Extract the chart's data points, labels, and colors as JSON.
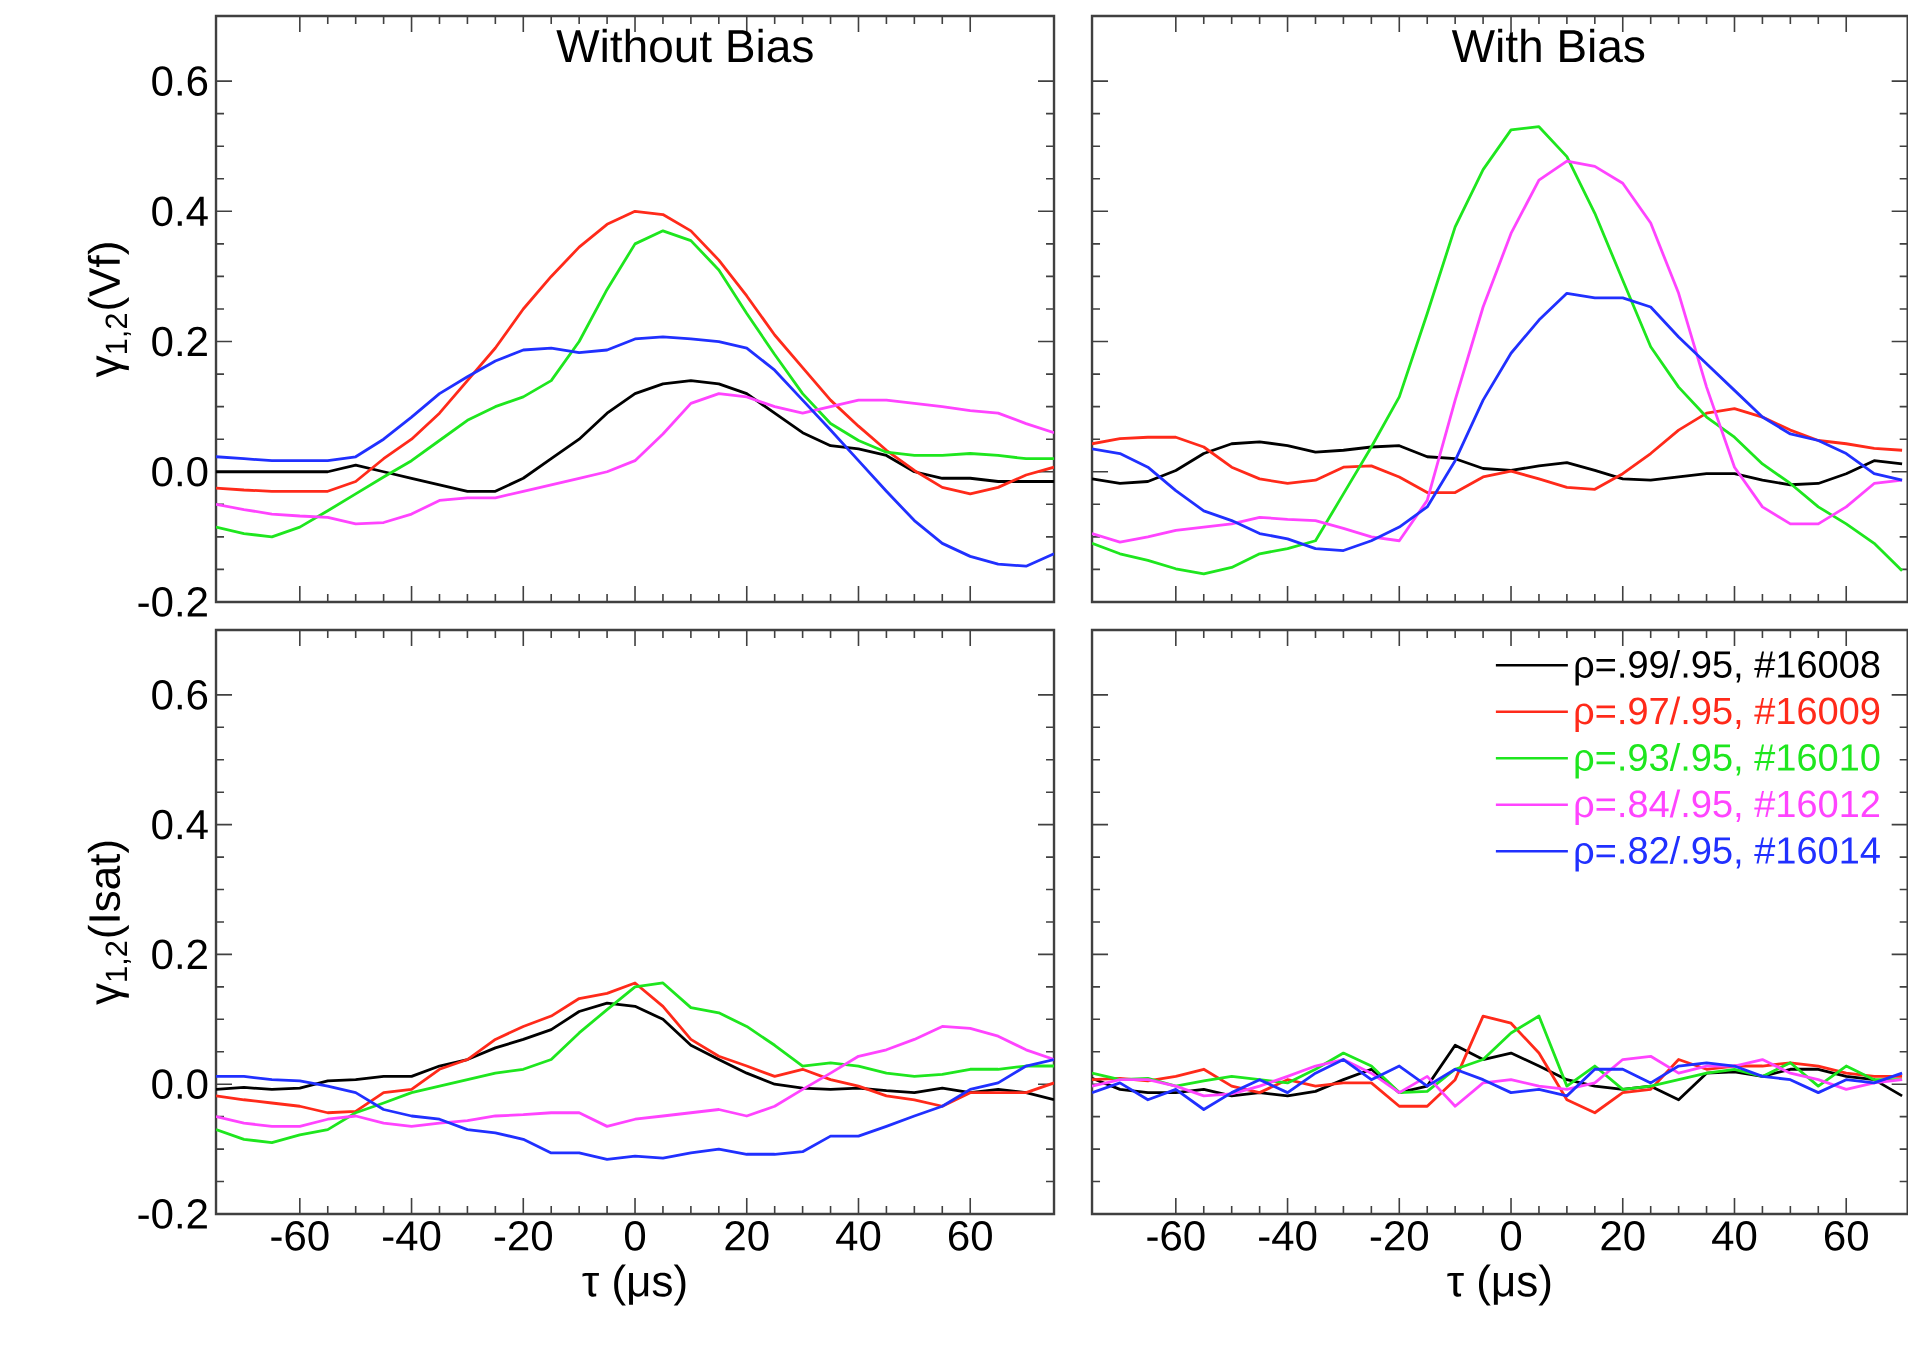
{
  "chart_data": [
    {
      "type": "line",
      "title": "Without Bias",
      "ylabel": "γ$_{1,2}$(Vf)",
      "tick_labels": "y",
      "x": [
        -75,
        -70,
        -65,
        -60,
        -55,
        -50,
        -45,
        -40,
        -35,
        -30,
        -25,
        -20,
        -15,
        -10,
        -5,
        0,
        5,
        10,
        15,
        20,
        25,
        30,
        35,
        40,
        45,
        50,
        55,
        60,
        65,
        70,
        75
      ],
      "xlim": [
        -75,
        75
      ],
      "ylim": [
        -0.2,
        0.7
      ],
      "xticks": [
        -60,
        -40,
        -20,
        0,
        20,
        40,
        60
      ],
      "yticks": [
        -0.2,
        {
          "value": 0,
          "label": "0.0"
        },
        0.2,
        0.4,
        0.6
      ],
      "series": [
        {
          "color": "#000000",
          "values": [
            0.0,
            0.0,
            0.0,
            0.0,
            0.0,
            0.01,
            0.0,
            -0.01,
            -0.02,
            -0.03,
            -0.03,
            -0.01,
            0.02,
            0.05,
            0.09,
            0.12,
            0.135,
            0.14,
            0.135,
            0.12,
            0.09,
            0.06,
            0.04,
            0.035,
            0.025,
            0.0,
            -0.01,
            -0.01,
            -0.015,
            -0.015,
            -0.015
          ]
        },
        {
          "color": "#ff2a1a",
          "values": [
            -0.025,
            -0.028,
            -0.03,
            -0.03,
            -0.03,
            -0.015,
            0.02,
            0.05,
            0.09,
            0.14,
            0.19,
            0.25,
            0.3,
            0.345,
            0.38,
            0.4,
            0.395,
            0.37,
            0.325,
            0.27,
            0.21,
            0.16,
            0.11,
            0.07,
            0.033,
            0.002,
            -0.024,
            -0.034,
            -0.024,
            -0.005,
            0.007
          ]
        },
        {
          "color": "#1ee61e",
          "values": [
            -0.085,
            -0.095,
            -0.1,
            -0.085,
            -0.06,
            -0.034,
            -0.008,
            0.017,
            0.048,
            0.079,
            0.1,
            0.115,
            0.14,
            0.2,
            0.28,
            0.35,
            0.37,
            0.355,
            0.31,
            0.243,
            0.18,
            0.12,
            0.074,
            0.048,
            0.03,
            0.025,
            0.025,
            0.028,
            0.025,
            0.02,
            0.02
          ]
        },
        {
          "color": "#ff44ff",
          "values": [
            -0.05,
            -0.058,
            -0.065,
            -0.068,
            -0.07,
            -0.08,
            -0.078,
            -0.065,
            -0.044,
            -0.04,
            -0.04,
            -0.03,
            -0.02,
            -0.01,
            0.0,
            0.017,
            0.058,
            0.105,
            0.12,
            0.115,
            0.1,
            0.09,
            0.1,
            0.11,
            0.11,
            0.105,
            0.1,
            0.094,
            0.09,
            0.074,
            0.06
          ]
        },
        {
          "color": "#2030ff",
          "values": [
            0.023,
            0.02,
            0.017,
            0.017,
            0.017,
            0.023,
            0.05,
            0.084,
            0.12,
            0.146,
            0.17,
            0.187,
            0.19,
            0.183,
            0.187,
            0.204,
            0.207,
            0.204,
            0.2,
            0.19,
            0.156,
            0.11,
            0.064,
            0.017,
            -0.03,
            -0.075,
            -0.11,
            -0.13,
            -0.142,
            -0.145,
            -0.126
          ]
        }
      ]
    },
    {
      "type": "line",
      "title": "With Bias",
      "tick_labels": false,
      "x": [
        -75,
        -70,
        -65,
        -60,
        -55,
        -50,
        -45,
        -40,
        -35,
        -30,
        -25,
        -20,
        -15,
        -10,
        -5,
        0,
        5,
        10,
        15,
        20,
        25,
        30,
        35,
        40,
        45,
        50,
        55,
        60,
        65,
        70
      ],
      "xlim": [
        -75,
        71
      ],
      "ylim": [
        -0.2,
        0.7
      ],
      "xticks": [
        -60,
        -40,
        -20,
        0,
        20,
        40,
        60
      ],
      "yticks": [
        -0.2,
        0,
        0.2,
        0.4,
        0.6
      ],
      "series": [
        {
          "color": "#000000",
          "values": [
            -0.011,
            -0.018,
            -0.015,
            0.002,
            0.028,
            0.043,
            0.046,
            0.04,
            0.03,
            0.033,
            0.038,
            0.04,
            0.023,
            0.02,
            0.005,
            0.002,
            0.009,
            0.014,
            0.002,
            -0.011,
            -0.013,
            -0.008,
            -0.003,
            -0.003,
            -0.013,
            -0.02,
            -0.018,
            -0.003,
            0.017,
            0.012
          ]
        },
        {
          "color": "#ff2a1a",
          "values": [
            0.043,
            0.051,
            0.053,
            0.053,
            0.038,
            0.007,
            -0.011,
            -0.018,
            -0.013,
            0.007,
            0.009,
            -0.008,
            -0.032,
            -0.032,
            -0.008,
            0.001,
            -0.011,
            -0.024,
            -0.027,
            -0.003,
            0.028,
            0.064,
            0.09,
            0.097,
            0.084,
            0.064,
            0.048,
            0.043,
            0.036,
            0.033
          ]
        },
        {
          "color": "#1ee61e",
          "values": [
            -0.11,
            -0.126,
            -0.136,
            -0.149,
            -0.157,
            -0.147,
            -0.126,
            -0.118,
            -0.106,
            -0.034,
            0.038,
            0.115,
            0.243,
            0.376,
            0.464,
            0.525,
            0.53,
            0.484,
            0.397,
            0.294,
            0.192,
            0.13,
            0.084,
            0.053,
            0.012,
            -0.018,
            -0.054,
            -0.08,
            -0.11,
            -0.152
          ]
        },
        {
          "color": "#ff44ff",
          "values": [
            -0.095,
            -0.108,
            -0.1,
            -0.09,
            -0.085,
            -0.08,
            -0.07,
            -0.073,
            -0.075,
            -0.087,
            -0.1,
            -0.106,
            -0.044,
            0.11,
            0.253,
            0.366,
            0.448,
            0.477,
            0.469,
            0.443,
            0.382,
            0.274,
            0.13,
            0.007,
            -0.054,
            -0.08,
            -0.08,
            -0.054,
            -0.018,
            -0.013
          ]
        },
        {
          "color": "#2030ff",
          "values": [
            0.035,
            0.028,
            0.007,
            -0.029,
            -0.06,
            -0.075,
            -0.095,
            -0.103,
            -0.118,
            -0.121,
            -0.106,
            -0.085,
            -0.054,
            0.017,
            0.11,
            0.182,
            0.233,
            0.274,
            0.267,
            0.267,
            0.253,
            0.207,
            0.166,
            0.125,
            0.084,
            0.058,
            0.048,
            0.028,
            -0.003,
            -0.013
          ]
        }
      ]
    },
    {
      "type": "line",
      "xlabel": "τ (μs)",
      "ylabel": "γ$_{1,2}$(Isat)",
      "x": [
        -75,
        -70,
        -65,
        -60,
        -55,
        -50,
        -45,
        -40,
        -35,
        -30,
        -25,
        -20,
        -15,
        -10,
        -5,
        0,
        5,
        10,
        15,
        20,
        25,
        30,
        35,
        40,
        45,
        50,
        55,
        60,
        65,
        70,
        75
      ],
      "xlim": [
        -75,
        75
      ],
      "ylim": [
        -0.2,
        0.7
      ],
      "xticks": [
        -60,
        -40,
        -20,
        0,
        20,
        40,
        60
      ],
      "yticks": [
        -0.2,
        {
          "value": 0,
          "label": "0.0"
        },
        0.2,
        0.4,
        0.6
      ],
      "series": [
        {
          "color": "#000000",
          "values": [
            -0.008,
            -0.005,
            -0.008,
            -0.006,
            0.005,
            0.007,
            0.012,
            0.012,
            0.028,
            0.038,
            0.056,
            0.069,
            0.084,
            0.112,
            0.125,
            0.12,
            0.1,
            0.06,
            0.038,
            0.017,
            0.0,
            -0.006,
            -0.008,
            -0.006,
            -0.01,
            -0.013,
            -0.006,
            -0.013,
            -0.008,
            -0.013,
            -0.024
          ]
        },
        {
          "color": "#ff2a1a",
          "values": [
            -0.018,
            -0.024,
            -0.029,
            -0.034,
            -0.044,
            -0.042,
            -0.013,
            -0.008,
            0.023,
            0.038,
            0.069,
            0.089,
            0.105,
            0.132,
            0.14,
            0.156,
            0.12,
            0.069,
            0.043,
            0.028,
            0.012,
            0.023,
            0.007,
            -0.003,
            -0.018,
            -0.024,
            -0.034,
            -0.013,
            -0.013,
            -0.013,
            0.002
          ]
        },
        {
          "color": "#1ee61e",
          "values": [
            -0.07,
            -0.085,
            -0.09,
            -0.078,
            -0.07,
            -0.044,
            -0.029,
            -0.013,
            -0.003,
            0.007,
            0.017,
            0.023,
            0.038,
            0.079,
            0.115,
            0.15,
            0.156,
            0.118,
            0.11,
            0.089,
            0.06,
            0.028,
            0.033,
            0.028,
            0.017,
            0.012,
            0.015,
            0.023,
            0.023,
            0.028,
            0.028
          ]
        },
        {
          "color": "#ff44ff",
          "values": [
            -0.05,
            -0.06,
            -0.065,
            -0.065,
            -0.054,
            -0.049,
            -0.06,
            -0.065,
            -0.06,
            -0.056,
            -0.049,
            -0.047,
            -0.044,
            -0.044,
            -0.065,
            -0.054,
            -0.049,
            -0.044,
            -0.039,
            -0.049,
            -0.034,
            -0.008,
            0.017,
            0.043,
            0.053,
            0.069,
            0.089,
            0.086,
            0.074,
            0.053,
            0.038
          ]
        },
        {
          "color": "#2030ff",
          "values": [
            0.012,
            0.012,
            0.007,
            0.005,
            -0.003,
            -0.013,
            -0.039,
            -0.049,
            -0.054,
            -0.07,
            -0.075,
            -0.085,
            -0.106,
            -0.106,
            -0.116,
            -0.111,
            -0.114,
            -0.106,
            -0.1,
            -0.108,
            -0.108,
            -0.104,
            -0.08,
            -0.08,
            -0.065,
            -0.049,
            -0.034,
            -0.008,
            0.002,
            0.028,
            0.038
          ]
        }
      ]
    },
    {
      "type": "line",
      "xlabel": "τ (μs)",
      "tick_labels": "x",
      "legend": "top right",
      "x": [
        -75,
        -70,
        -65,
        -60,
        -55,
        -50,
        -45,
        -40,
        -35,
        -30,
        -25,
        -20,
        -15,
        -10,
        -5,
        0,
        5,
        10,
        15,
        20,
        25,
        30,
        35,
        40,
        45,
        50,
        55,
        60,
        65,
        70
      ],
      "xlim": [
        -75,
        71
      ],
      "ylim": [
        -0.2,
        0.7
      ],
      "xticks": [
        -60,
        -40,
        -20,
        0,
        20,
        40,
        60
      ],
      "yticks": [
        -0.2,
        0,
        0.2,
        0.4,
        0.6
      ],
      "series": [
        {
          "name": "ρ=.99/.95, #16008",
          "color": "#000000",
          "values": [
            0.009,
            -0.008,
            -0.013,
            -0.013,
            -0.008,
            -0.018,
            -0.013,
            -0.018,
            -0.011,
            0.007,
            0.023,
            -0.013,
            -0.003,
            0.06,
            0.038,
            0.048,
            0.028,
            0.007,
            -0.003,
            -0.008,
            -0.003,
            -0.024,
            0.017,
            0.019,
            0.012,
            0.023,
            0.023,
            0.012,
            0.007,
            -0.018
          ]
        },
        {
          "name": "ρ=.97/.95, #16009",
          "color": "#ff2a1a",
          "values": [
            0.007,
            0.009,
            0.005,
            0.012,
            0.023,
            -0.003,
            -0.013,
            0.007,
            -0.003,
            0.002,
            0.002,
            -0.034,
            -0.034,
            0.007,
            0.105,
            0.094,
            0.048,
            -0.024,
            -0.044,
            -0.013,
            -0.008,
            0.038,
            0.023,
            0.028,
            0.028,
            0.033,
            0.028,
            0.017,
            0.012,
            0.012
          ]
        },
        {
          "name": "ρ=.93/.95, #16010",
          "color": "#1ee61e",
          "values": [
            0.017,
            0.007,
            0.009,
            -0.003,
            0.005,
            0.012,
            0.007,
            0.002,
            0.023,
            0.048,
            0.028,
            -0.013,
            -0.011,
            0.023,
            0.038,
            0.079,
            0.105,
            -0.003,
            0.028,
            -0.008,
            -0.003,
            0.007,
            0.017,
            0.023,
            0.012,
            0.033,
            -0.003,
            0.028,
            0.007,
            0.007
          ]
        },
        {
          "name": "ρ=.84/.95, #16012",
          "color": "#ff44ff",
          "values": [
            -0.003,
            0.007,
            0.007,
            -0.003,
            -0.018,
            -0.015,
            -0.003,
            0.012,
            0.028,
            0.038,
            0.017,
            -0.013,
            0.012,
            -0.034,
            0.002,
            0.007,
            -0.003,
            -0.008,
            0.002,
            0.038,
            0.043,
            0.017,
            0.028,
            0.028,
            0.038,
            0.017,
            0.007,
            -0.008,
            0.002,
            0.007
          ]
        },
        {
          "name": "ρ=.82/.95, #16014",
          "color": "#2030ff",
          "values": [
            -0.013,
            0.002,
            -0.024,
            -0.008,
            -0.039,
            -0.013,
            0.007,
            -0.013,
            0.017,
            0.038,
            0.007,
            0.028,
            -0.003,
            0.023,
            0.007,
            -0.013,
            -0.008,
            -0.018,
            0.023,
            0.023,
            0.002,
            0.028,
            0.033,
            0.028,
            0.012,
            0.007,
            -0.013,
            0.007,
            0.002,
            0.017
          ]
        }
      ]
    }
  ]
}
